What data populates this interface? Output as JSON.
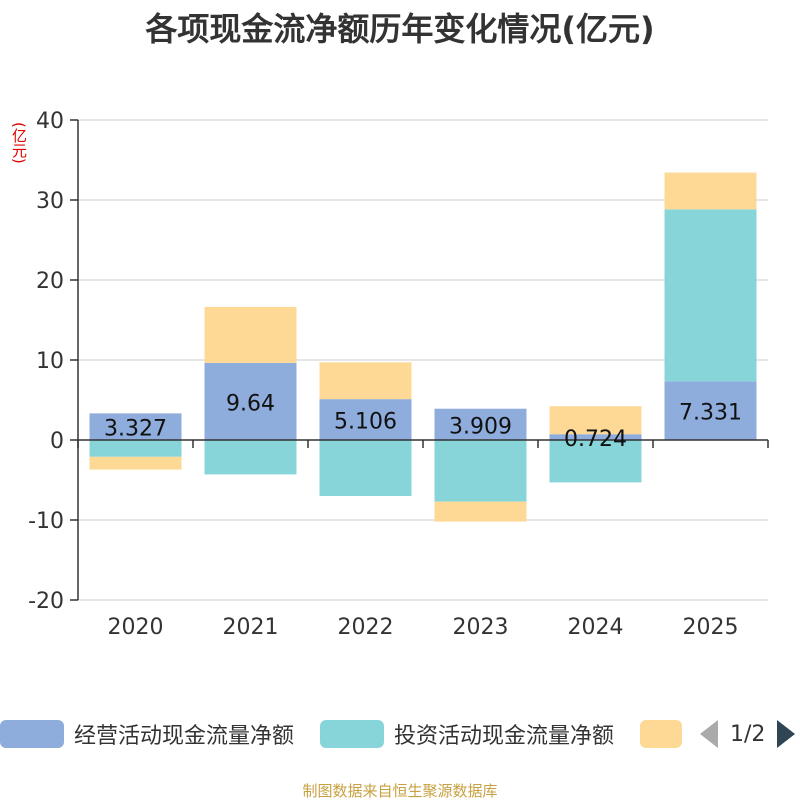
{
  "title": "各项现金流净额历年变化情况(亿元)",
  "unit_label": "(亿元)",
  "source": "制图数据来自恒生聚源数据库",
  "legend": {
    "items": [
      {
        "label": "经营活动现金流量净额",
        "color": "#8eacdc"
      },
      {
        "label": "投资活动现金流量净额",
        "color": "#87d5d9"
      },
      {
        "label": "",
        "color": "#fed895"
      }
    ],
    "page": "1/2"
  },
  "chart_data": {
    "type": "bar",
    "stacked": true,
    "categories": [
      "2020",
      "2021",
      "2022",
      "2023",
      "2024",
      "2025"
    ],
    "ylim": [
      -20,
      40
    ],
    "yticks": [
      -20,
      -10,
      0,
      10,
      20,
      30,
      40
    ],
    "grid": true,
    "legend_position": "bottom",
    "series": [
      {
        "name": "经营活动现金流量净额",
        "color": "#8eacdc",
        "values": [
          3.327,
          9.64,
          5.106,
          3.909,
          0.724,
          7.331
        ],
        "labels": [
          "3.327",
          "9.64",
          "5.106",
          "3.909",
          "0.724",
          "7.331"
        ]
      },
      {
        "name": "投资活动现金流量净额",
        "color": "#87d5d9",
        "values": [
          -2.1,
          -4.3,
          -7.0,
          -7.7,
          -5.3,
          21.5
        ]
      },
      {
        "name": "",
        "color": "#fed895",
        "values": [
          -1.6,
          7.0,
          4.6,
          -2.5,
          3.5,
          4.6
        ]
      }
    ]
  }
}
